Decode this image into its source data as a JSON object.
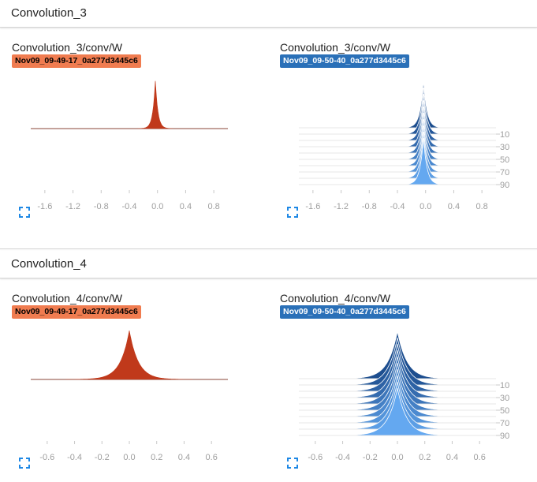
{
  "sections": [
    {
      "title": "Convolution_3",
      "cards": [
        {
          "title": "Convolution_3/conv/W",
          "run": "Nov09_09-49-17_0a277d3445c6",
          "run_color": "#f07c50",
          "mode": "single",
          "width": 0.035
        },
        {
          "title": "Convolution_3/conv/W",
          "run": "Nov09_09-50-40_0a277d3445c6",
          "run_color": "#2a70b8",
          "mode": "stack",
          "width": 0.05
        }
      ]
    },
    {
      "title": "Convolution_4",
      "cards": [
        {
          "title": "Convolution_4/conv/W",
          "run": "Nov09_09-49-17_0a277d3445c6",
          "run_color": "#f07c50",
          "mode": "single",
          "width": 0.065
        },
        {
          "title": "Convolution_4/conv/W",
          "run": "Nov09_09-50-40_0a277d3445c6",
          "run_color": "#2a70b8",
          "mode": "stack",
          "width": 0.07
        }
      ]
    }
  ],
  "chart_data": [
    {
      "type": "area",
      "title": "Convolution_3/conv/W",
      "legend": [
        "Nov09_09-49-17_0a277d3445c6"
      ],
      "xlim": [
        -1.8,
        1.0
      ],
      "x_ticks": [
        "-1.6",
        "-1.2",
        "-0.8",
        "-0.4",
        "0.0",
        "0.4",
        "0.8"
      ],
      "x_tick_values": [
        -1.6,
        -1.2,
        -0.8,
        -0.4,
        0.0,
        0.4,
        0.8
      ],
      "y_ticks": [],
      "peak_x": -0.03
    },
    {
      "type": "area",
      "title": "Convolution_3/conv/W",
      "legend": [
        "Nov09_09-50-40_0a277d3445c6"
      ],
      "xlim": [
        -1.8,
        1.0
      ],
      "x_ticks": [
        "-1.6",
        "-1.2",
        "-0.8",
        "-0.4",
        "0.0",
        "0.4",
        "0.8"
      ],
      "x_tick_values": [
        -1.6,
        -1.2,
        -0.8,
        -0.4,
        0.0,
        0.4,
        0.8
      ],
      "y_ticks": [
        "10",
        "30",
        "50",
        "70",
        "90"
      ],
      "y_tick_values": [
        10,
        30,
        50,
        70,
        90
      ],
      "steps": [
        0,
        10,
        20,
        30,
        40,
        50,
        60,
        70,
        80,
        90
      ],
      "peak_x": -0.03
    },
    {
      "type": "area",
      "title": "Convolution_4/conv/W",
      "legend": [
        "Nov09_09-49-17_0a277d3445c6"
      ],
      "xlim": [
        -0.72,
        0.72
      ],
      "x_ticks": [
        "-0.6",
        "-0.4",
        "-0.2",
        "0.0",
        "0.2",
        "0.4",
        "0.6"
      ],
      "x_tick_values": [
        -0.6,
        -0.4,
        -0.2,
        0.0,
        0.2,
        0.4,
        0.6
      ],
      "y_ticks": [],
      "peak_x": 0.0
    },
    {
      "type": "area",
      "title": "Convolution_4/conv/W",
      "legend": [
        "Nov09_09-50-40_0a277d3445c6"
      ],
      "xlim": [
        -0.72,
        0.72
      ],
      "x_ticks": [
        "-0.6",
        "-0.4",
        "-0.2",
        "0.0",
        "0.2",
        "0.4",
        "0.6"
      ],
      "x_tick_values": [
        -0.6,
        -0.4,
        -0.2,
        0.0,
        0.2,
        0.4,
        0.6
      ],
      "y_ticks": [
        "10",
        "30",
        "50",
        "70",
        "90"
      ],
      "y_tick_values": [
        10,
        30,
        50,
        70,
        90
      ],
      "steps": [
        0,
        10,
        20,
        30,
        40,
        50,
        60,
        70,
        80,
        90
      ],
      "peak_x": 0.0
    }
  ],
  "icons": {
    "expand": "expand-icon"
  }
}
